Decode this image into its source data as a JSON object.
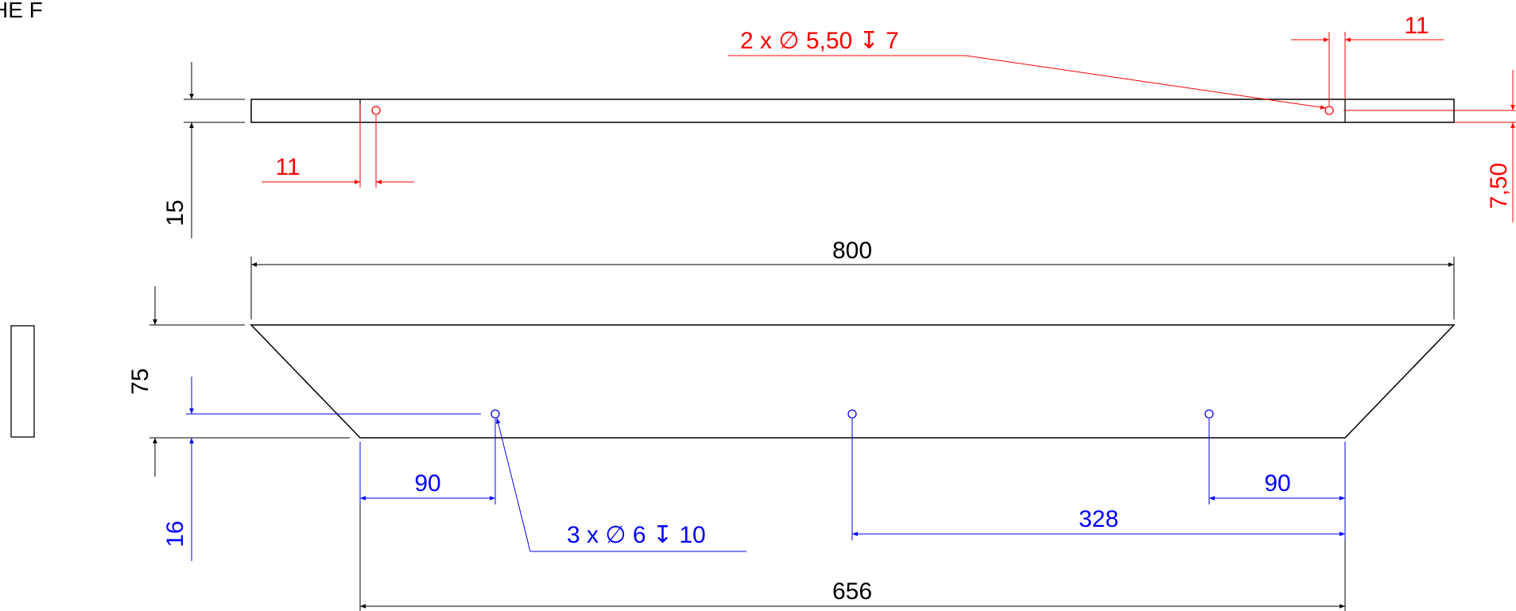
{
  "sheet_label": "HE F",
  "colors": {
    "outline": "#000000",
    "red": "#ff0000",
    "blue": "#0000ff"
  },
  "top_view": {
    "thickness_dim": "15",
    "hole_callout": "2 x ∅ 5,50 ↧ 7",
    "left_hole_offset": "11",
    "right_hole_offset": "11",
    "hole_center_height": "7,50"
  },
  "front_view": {
    "top_length": "800",
    "height": "75",
    "bottom_length": "656",
    "hole_callout": "3 x ∅ 6 ↧ 10",
    "hole_height": "16",
    "left_hole_offset": "90",
    "right_hole_offset": "90",
    "middle_hole_offset": "328"
  }
}
